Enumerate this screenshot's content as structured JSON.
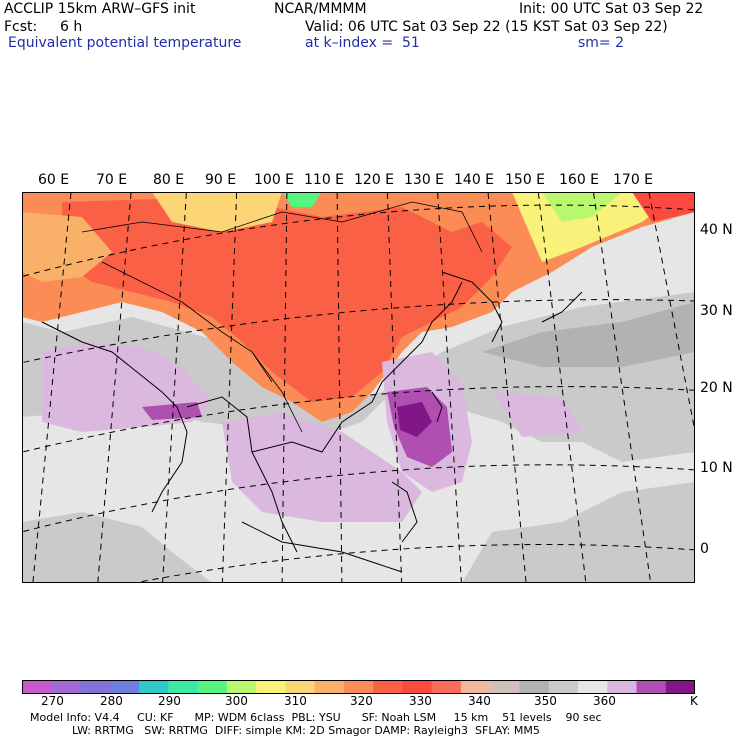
{
  "header": {
    "model_line": "ACCLIP 15km ARW–GFS init",
    "fcst_label": "Fcst:",
    "fcst_value": "6 h",
    "product": "Equivalent potential temperature",
    "center": "NCAR/MMMM",
    "init": "Init: 00 UTC Sat 03 Sep 22",
    "valid": "Valid: 06 UTC Sat 03 Sep 22 (15 KST Sat 03 Sep 22)",
    "level": "at k–index =  51",
    "smooth": "sm= 2"
  },
  "map": {
    "lon_labels": [
      "60 E",
      "70 E",
      "80 E",
      "90 E",
      "100 E",
      "110 E",
      "120 E",
      "130 E",
      "140 E",
      "150 E",
      "160 E",
      "170 E"
    ],
    "lat_labels": [
      "40 N",
      "30 N",
      "20 N",
      "10 N",
      "0"
    ]
  },
  "colorbar": {
    "unit": "K",
    "labels": [
      "270",
      "280",
      "290",
      "300",
      "310",
      "320",
      "330",
      "340",
      "350",
      "360"
    ],
    "colors": [
      "#c95acb",
      "#a36ad6",
      "#8272da",
      "#6e7fdf",
      "#31c9c6",
      "#3ce8a4",
      "#55f57f",
      "#b9f76e",
      "#f8f27b",
      "#fbd576",
      "#f9b069",
      "#fb8c55",
      "#fa6045",
      "#fc4a40",
      "#fb6d5a",
      "#f2b9a0",
      "#cfc0b9",
      "#b2b2b2",
      "#cacaca",
      "#e6e6e6",
      "#dbb8dd",
      "#b04fb2",
      "#811787"
    ]
  },
  "footer": {
    "line1": "Model Info: V4.4     CU: KF      MP: WDM 6class  PBL: YSU      SF: Noah LSM     15 km    51 levels    90 sec",
    "line2": "            LW: RRTMG   SW: RRTMG  DIFF: simple KM: 2D Smagor DAMP: Rayleigh3  SFLAY: MM5"
  }
}
